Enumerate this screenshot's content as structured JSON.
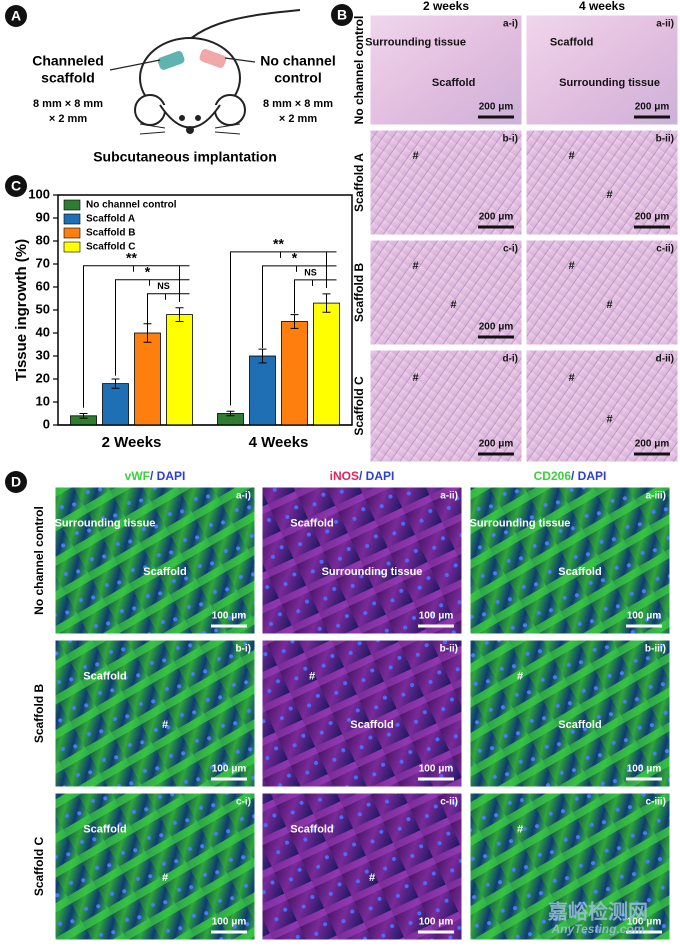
{
  "panel_a": {
    "label": "A",
    "left": [
      "Channeled",
      "scaffold"
    ],
    "right": [
      "No channel",
      "control"
    ],
    "left_size": [
      "8 mm × 8 mm",
      "× 2 mm"
    ],
    "right_size": [
      "8 mm × 8 mm",
      "× 2 mm"
    ],
    "caption": "Subcutaneous implantation"
  },
  "panel_b": {
    "label": "B",
    "columns": [
      "2 weeks",
      "4 weeks"
    ],
    "rows": [
      "No channel control",
      "Scaffold A",
      "Scaffold B",
      "Scaffold C"
    ],
    "cells": [
      [
        {
          "label": "a-i)",
          "scale": "200 μm",
          "texts": [
            "Surrounding tissue",
            "Scaffold"
          ]
        },
        {
          "label": "a-ii)",
          "scale": "200 μm",
          "texts": [
            "Scaffold",
            "Surrounding tissue"
          ]
        }
      ],
      [
        {
          "label": "b-i)",
          "scale": "200 μm",
          "texts": [
            "#"
          ]
        },
        {
          "label": "b-ii)",
          "scale": "200 μm",
          "texts": [
            "#",
            "#"
          ]
        }
      ],
      [
        {
          "label": "c-i)",
          "scale": "200 μm",
          "texts": [
            "#",
            "#"
          ]
        },
        {
          "label": "c-ii)",
          "scale": "",
          "texts": [
            "#",
            "#"
          ]
        }
      ],
      [
        {
          "label": "d-i)",
          "scale": "200 μm",
          "texts": [
            "#"
          ]
        },
        {
          "label": "d-ii)",
          "scale": "200 μm",
          "texts": [
            "#",
            "#"
          ]
        }
      ]
    ]
  },
  "panel_c_label": "C",
  "chart_data": {
    "type": "bar",
    "ylabel": "Tissue ingrowth (%)",
    "categories": [
      "2 Weeks",
      "4 Weeks"
    ],
    "series": [
      {
        "name": "No channel control",
        "color": "#2e7d32",
        "values": [
          4,
          5
        ],
        "errors": [
          1,
          1
        ]
      },
      {
        "name": "Scaffold A",
        "color": "#1f6fb4",
        "values": [
          18,
          30
        ],
        "errors": [
          2,
          3
        ]
      },
      {
        "name": "Scaffold B",
        "color": "#ff7f0e",
        "values": [
          40,
          45
        ],
        "errors": [
          4,
          3
        ]
      },
      {
        "name": "Scaffold C",
        "color": "#ffff00",
        "values": [
          48,
          53
        ],
        "errors": [
          3,
          4
        ]
      }
    ],
    "significance": [
      "**",
      "*",
      "NS"
    ],
    "ylim": [
      0,
      100
    ],
    "yticks": [
      0,
      10,
      20,
      30,
      40,
      50,
      60,
      70,
      80,
      90,
      100
    ],
    "legend": "upper-left"
  },
  "panel_d": {
    "label": "D",
    "columns": [
      {
        "marker": "vWF",
        "stain": "/ DAPI",
        "color": "#3ad13a"
      },
      {
        "marker": "iNOS",
        "stain": "/ DAPI",
        "color": "#e0245e"
      },
      {
        "marker": "CD206",
        "stain": "/ DAPI",
        "color": "#3ad13a"
      }
    ],
    "rows": [
      "No channel control",
      "Scaffold B",
      "Scaffold C"
    ],
    "cells": [
      [
        {
          "label": "a-i)",
          "scale": "100 μm",
          "texts": [
            "Surrounding tissue",
            "Scaffold"
          ]
        },
        {
          "label": "a-ii)",
          "scale": "100 μm",
          "texts": [
            "Scaffold",
            "Surrounding tissue"
          ]
        },
        {
          "label": "a-iii)",
          "scale": "100 μm",
          "texts": [
            "Surrounding tissue",
            "Scaffold"
          ]
        }
      ],
      [
        {
          "label": "b-i)",
          "scale": "100 μm",
          "texts": [
            "Scaffold",
            "#"
          ]
        },
        {
          "label": "b-ii)",
          "scale": "100 μm",
          "texts": [
            "#",
            "Scaffold"
          ]
        },
        {
          "label": "b-iii)",
          "scale": "100 μm",
          "texts": [
            "#",
            "Scaffold"
          ]
        }
      ],
      [
        {
          "label": "c-i)",
          "scale": "100 μm",
          "texts": [
            "Scaffold",
            "#"
          ]
        },
        {
          "label": "c-ii)",
          "scale": "100 μm",
          "texts": [
            "Scaffold",
            "#"
          ]
        },
        {
          "label": "c-iii)",
          "scale": "100 μm",
          "texts": [
            "#"
          ]
        }
      ]
    ]
  },
  "watermark": [
    "嘉峪检测网",
    "AnyTesting.com"
  ]
}
